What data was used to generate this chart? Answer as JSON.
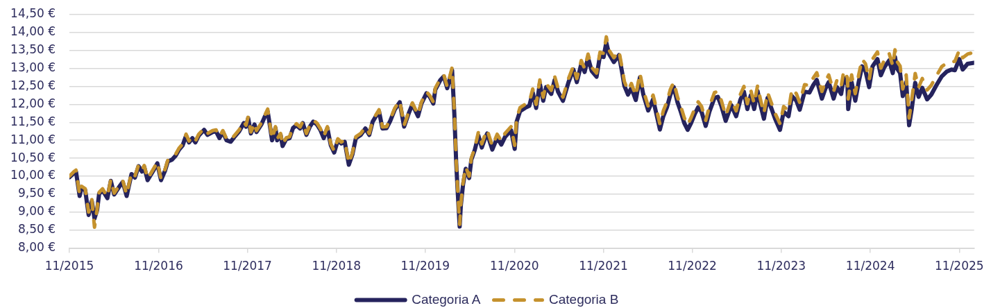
{
  "chart_data": {
    "type": "line",
    "x": [
      "2015-11-01",
      "2015-11-20",
      "2015-11-28",
      "2015-12-13",
      "2015-12-21",
      "2016-01-05",
      "2016-01-19",
      "2016-02-01",
      "2016-02-12",
      "2016-02-23",
      "2016-03-02",
      "2016-03-16",
      "2016-04-05",
      "2016-04-19",
      "2016-05-03",
      "2016-05-23",
      "2016-06-07",
      "2016-06-23",
      "2016-07-13",
      "2016-07-27",
      "2016-08-11",
      "2016-08-25",
      "2016-09-03",
      "2016-09-17",
      "2016-10-02",
      "2016-10-16",
      "2016-10-27",
      "2016-11-11",
      "2016-11-28",
      "2016-12-09",
      "2016-12-26",
      "2017-01-10",
      "2017-01-24",
      "2017-02-08",
      "2017-02-22",
      "2017-03-06",
      "2017-03-20",
      "2017-04-01",
      "2017-04-15",
      "2017-05-07",
      "2017-05-21",
      "2017-06-11",
      "2017-06-25",
      "2017-07-09",
      "2017-07-23",
      "2017-08-07",
      "2017-08-24",
      "2017-09-08",
      "2017-09-28",
      "2017-10-17",
      "2017-10-26",
      "2017-11-04",
      "2017-11-15",
      "2017-11-30",
      "2017-12-08",
      "2017-12-28",
      "2018-01-12",
      "2018-01-23",
      "2018-01-29",
      "2018-02-10",
      "2018-02-24",
      "2018-03-03",
      "2018-03-17",
      "2018-03-25",
      "2018-04-09",
      "2018-04-23",
      "2018-05-07",
      "2018-05-21",
      "2018-06-05",
      "2018-06-16",
      "2018-07-01",
      "2018-07-15",
      "2018-07-29",
      "2018-08-13",
      "2018-08-27",
      "2018-09-10",
      "2018-09-25",
      "2018-10-09",
      "2018-10-23",
      "2018-11-07",
      "2018-11-21",
      "2018-12-05",
      "2018-12-22",
      "2019-01-06",
      "2019-01-20",
      "2019-02-09",
      "2019-02-28",
      "2019-03-16",
      "2019-03-30",
      "2019-04-25",
      "2019-05-09",
      "2019-05-26",
      "2019-06-10",
      "2019-06-29",
      "2019-07-19",
      "2019-08-06",
      "2019-08-26",
      "2019-09-09",
      "2019-10-02",
      "2019-10-16",
      "2019-11-06",
      "2019-11-20",
      "2019-12-04",
      "2019-12-12",
      "2020-01-02",
      "2020-01-16",
      "2020-01-30",
      "2020-02-19",
      "2020-02-28",
      "2020-03-07",
      "2020-03-12",
      "2020-03-21",
      "2020-03-26",
      "2020-04-04",
      "2020-04-15",
      "2020-04-29",
      "2020-05-08",
      "2020-05-22",
      "2020-06-06",
      "2020-06-20",
      "2020-07-04",
      "2020-07-12",
      "2020-08-02",
      "2020-08-22",
      "2020-09-08",
      "2020-09-23",
      "2020-10-18",
      "2020-11-02",
      "2020-11-10",
      "2020-11-24",
      "2020-12-14",
      "2021-01-01",
      "2021-01-15",
      "2021-01-29",
      "2021-02-13",
      "2021-02-27",
      "2021-03-11",
      "2021-04-01",
      "2021-04-15",
      "2021-04-29",
      "2021-05-19",
      "2021-06-11",
      "2021-07-01",
      "2021-07-15",
      "2021-08-02",
      "2021-08-16",
      "2021-08-30",
      "2021-09-14",
      "2021-10-04",
      "2021-10-18",
      "2021-11-02",
      "2021-11-13",
      "2021-11-24",
      "2021-12-14",
      "2022-01-04",
      "2022-01-18",
      "2022-01-26",
      "2022-02-10",
      "2022-02-24",
      "2022-03-14",
      "2022-03-31",
      "2022-04-14",
      "2022-05-04",
      "2022-05-24",
      "2022-06-02",
      "2022-06-21",
      "2022-07-05",
      "2022-07-20",
      "2022-08-03",
      "2022-08-17",
      "2022-09-01",
      "2022-09-15",
      "2022-09-29",
      "2022-10-13",
      "2022-10-27",
      "2022-11-11",
      "2022-11-25",
      "2022-12-09",
      "2022-12-26",
      "2023-01-10",
      "2023-01-31",
      "2023-02-14",
      "2023-02-28",
      "2023-03-18",
      "2023-04-10",
      "2023-04-30",
      "2023-05-17",
      "2023-06-01",
      "2023-06-15",
      "2023-06-29",
      "2023-07-13",
      "2023-07-27",
      "2023-08-08",
      "2023-08-22",
      "2023-09-06",
      "2023-09-20",
      "2023-10-07",
      "2023-10-27",
      "2023-11-11",
      "2023-12-01",
      "2023-12-15",
      "2024-01-02",
      "2024-01-16",
      "2024-02-05",
      "2024-02-25",
      "2024-03-12",
      "2024-03-26",
      "2024-04-16",
      "2024-04-30",
      "2024-05-14",
      "2024-06-03",
      "2024-06-17",
      "2024-07-04",
      "2024-07-15",
      "2024-07-30",
      "2024-08-02",
      "2024-08-16",
      "2024-08-31",
      "2024-09-14",
      "2024-09-28",
      "2024-10-12",
      "2024-10-27",
      "2024-11-10",
      "2024-11-30",
      "2024-12-14",
      "2024-12-28",
      "2025-01-17",
      "2025-02-01",
      "2025-02-10",
      "2025-02-18",
      "2025-03-03",
      "2025-03-14",
      "2025-03-28",
      "2025-04-09",
      "2025-04-20",
      "2025-05-04",
      "2025-05-18",
      "2025-06-02",
      "2025-06-22",
      "2025-07-09",
      "2025-07-29",
      "2025-08-21",
      "2025-09-10",
      "2025-09-30",
      "2025-10-14",
      "2025-11-01",
      "2025-11-15",
      "2025-12-05",
      "2026-01-01"
    ],
    "series": [
      {
        "name": "Categoria A",
        "color": "#25235d",
        "line_style": "solid",
        "values": [
          9.97,
          10.09,
          10.13,
          9.45,
          9.68,
          9.61,
          8.92,
          9.31,
          8.82,
          9.06,
          9.51,
          9.61,
          9.39,
          9.87,
          9.49,
          9.7,
          9.84,
          9.45,
          10.06,
          9.96,
          10.28,
          10.13,
          10.26,
          9.89,
          10.06,
          10.22,
          10.36,
          9.89,
          10.16,
          10.41,
          10.46,
          10.57,
          10.74,
          10.86,
          11.13,
          10.94,
          11.06,
          10.94,
          11.13,
          11.29,
          11.15,
          11.23,
          11.25,
          11.06,
          11.23,
          11.0,
          10.96,
          11.09,
          11.25,
          11.48,
          11.38,
          11.62,
          11.19,
          11.44,
          11.23,
          11.44,
          11.67,
          11.8,
          11.54,
          11.0,
          11.34,
          11.0,
          11.15,
          10.84,
          11.03,
          11.06,
          11.34,
          11.42,
          11.33,
          11.48,
          11.15,
          11.38,
          11.52,
          11.44,
          11.29,
          11.06,
          11.34,
          10.86,
          10.66,
          11.0,
          10.91,
          10.96,
          10.32,
          10.61,
          11.06,
          11.15,
          11.33,
          11.15,
          11.52,
          11.81,
          11.33,
          11.34,
          11.54,
          11.86,
          12.06,
          11.38,
          11.77,
          12.0,
          11.67,
          12.02,
          12.31,
          12.2,
          12.02,
          12.41,
          12.68,
          12.78,
          12.45,
          12.95,
          11.76,
          10.35,
          9.69,
          8.6,
          9.19,
          9.77,
          10.21,
          9.95,
          10.46,
          10.73,
          11.13,
          10.8,
          11.07,
          11.19,
          10.74,
          11.07,
          10.88,
          11.09,
          11.28,
          10.76,
          11.52,
          11.81,
          11.9,
          11.96,
          12.33,
          11.9,
          12.58,
          12.1,
          12.48,
          12.29,
          12.68,
          12.35,
          12.1,
          12.62,
          12.97,
          12.62,
          13.12,
          12.9,
          13.3,
          12.93,
          12.77,
          13.35,
          13.32,
          13.72,
          13.41,
          13.18,
          13.37,
          12.85,
          12.52,
          12.27,
          12.46,
          12.12,
          12.75,
          12.27,
          11.83,
          12.14,
          11.87,
          11.3,
          11.67,
          11.92,
          12.27,
          12.48,
          12.06,
          11.79,
          11.48,
          11.29,
          11.48,
          11.73,
          11.92,
          11.79,
          11.4,
          11.79,
          12.18,
          12.21,
          11.96,
          11.54,
          11.98,
          11.67,
          12.12,
          12.35,
          11.87,
          12.25,
          11.87,
          12.37,
          11.98,
          11.6,
          12.18,
          11.92,
          11.6,
          11.29,
          11.79,
          11.67,
          12.23,
          12.1,
          11.85,
          12.35,
          12.33,
          12.54,
          12.68,
          12.16,
          12.43,
          12.62,
          12.16,
          12.48,
          12.29,
          12.74,
          12.54,
          11.87,
          12.62,
          12.1,
          12.62,
          13.06,
          12.93,
          12.48,
          13.06,
          13.26,
          12.81,
          13.03,
          13.22,
          12.87,
          13.32,
          13.0,
          12.87,
          12.23,
          12.62,
          11.42,
          11.88,
          12.6,
          12.21,
          12.46,
          12.14,
          12.27,
          12.52,
          12.78,
          12.91,
          12.97,
          12.95,
          13.26,
          12.97,
          13.13,
          13.16
        ]
      },
      {
        "name": "Categoria B",
        "color": "#c5922e",
        "line_style": "dashed",
        "values": [
          10.0,
          10.13,
          10.17,
          9.49,
          9.72,
          9.65,
          9.0,
          9.35,
          8.58,
          9.1,
          9.55,
          9.65,
          9.43,
          9.91,
          9.53,
          9.74,
          9.88,
          9.49,
          10.1,
          10.0,
          10.32,
          10.17,
          10.3,
          9.93,
          10.1,
          10.26,
          10.4,
          9.93,
          10.2,
          10.45,
          10.5,
          10.61,
          10.78,
          10.9,
          11.17,
          10.98,
          11.1,
          10.98,
          11.17,
          11.33,
          11.19,
          11.27,
          11.29,
          11.1,
          11.27,
          11.04,
          11.0,
          11.13,
          11.29,
          11.52,
          11.42,
          11.66,
          11.23,
          11.48,
          11.27,
          11.48,
          11.71,
          11.87,
          11.58,
          11.04,
          11.38,
          11.04,
          11.19,
          10.88,
          11.07,
          11.1,
          11.38,
          11.46,
          11.37,
          11.52,
          11.19,
          11.42,
          11.56,
          11.48,
          11.33,
          11.1,
          11.38,
          10.9,
          10.7,
          11.04,
          10.95,
          11.0,
          10.36,
          10.65,
          11.1,
          11.19,
          11.37,
          11.19,
          11.56,
          11.85,
          11.37,
          11.38,
          11.58,
          11.9,
          12.1,
          11.42,
          11.81,
          12.04,
          11.71,
          12.06,
          12.35,
          12.24,
          12.06,
          12.45,
          12.72,
          12.82,
          12.49,
          13.03,
          11.81,
          10.4,
          9.74,
          8.66,
          9.24,
          9.82,
          10.26,
          10.0,
          10.51,
          10.78,
          11.23,
          10.9,
          11.17,
          11.29,
          10.84,
          11.17,
          10.98,
          11.19,
          11.38,
          10.86,
          11.62,
          11.91,
          12.0,
          12.06,
          12.43,
          12.0,
          12.68,
          12.2,
          12.58,
          12.39,
          12.78,
          12.45,
          12.2,
          12.72,
          13.07,
          12.72,
          13.22,
          13.0,
          13.4,
          13.03,
          12.87,
          13.45,
          13.42,
          13.88,
          13.51,
          13.3,
          13.49,
          12.97,
          12.64,
          12.39,
          12.58,
          12.24,
          12.87,
          12.39,
          11.95,
          12.26,
          12.02,
          11.45,
          11.82,
          12.07,
          12.42,
          12.62,
          12.21,
          11.94,
          11.63,
          11.43,
          11.63,
          11.88,
          12.07,
          11.94,
          11.55,
          11.94,
          12.33,
          12.36,
          12.11,
          11.69,
          12.13,
          11.82,
          12.27,
          12.5,
          12.02,
          12.4,
          12.02,
          12.52,
          12.13,
          11.75,
          12.33,
          12.07,
          11.75,
          11.46,
          11.94,
          11.82,
          12.43,
          12.3,
          12.05,
          12.55,
          12.53,
          12.74,
          12.88,
          12.36,
          12.63,
          12.82,
          12.36,
          12.68,
          12.49,
          12.94,
          12.74,
          12.15,
          12.82,
          12.3,
          12.82,
          13.26,
          13.13,
          12.68,
          13.26,
          13.46,
          13.01,
          13.23,
          13.42,
          13.07,
          13.52,
          13.2,
          13.07,
          12.43,
          12.82,
          11.62,
          12.14,
          12.86,
          12.47,
          12.72,
          12.4,
          12.53,
          12.78,
          13.05,
          13.15,
          13.18,
          13.2,
          13.51,
          13.3,
          13.4,
          13.45
        ]
      }
    ],
    "xlim": [
      "2015-11",
      "2026-01"
    ],
    "xticks": [
      {
        "value": "2015-11",
        "label": "11/2015"
      },
      {
        "value": "2016-11",
        "label": "11/2016"
      },
      {
        "value": "2017-11",
        "label": "11/2017"
      },
      {
        "value": "2018-11",
        "label": "11/2018"
      },
      {
        "value": "2019-11",
        "label": "11/2019"
      },
      {
        "value": "2020-11",
        "label": "11/2020"
      },
      {
        "value": "2021-11",
        "label": "11/2021"
      },
      {
        "value": "2022-11",
        "label": "11/2022"
      },
      {
        "value": "2023-11",
        "label": "11/2023"
      },
      {
        "value": "2024-11",
        "label": "11/2024"
      },
      {
        "value": "2025-11",
        "label": "11/2025"
      }
    ],
    "ylim": [
      8,
      14.5
    ],
    "yticks": [
      {
        "value": 8,
        "label": "8,00 €"
      },
      {
        "value": 8.5,
        "label": "8,50 €"
      },
      {
        "value": 9,
        "label": "9,00 €"
      },
      {
        "value": 9.5,
        "label": "9,50 €"
      },
      {
        "value": 10,
        "label": "10,00 €"
      },
      {
        "value": 10.5,
        "label": "10,50 €"
      },
      {
        "value": 11,
        "label": "11,00 €"
      },
      {
        "value": 11.5,
        "label": "11,50 €"
      },
      {
        "value": 12,
        "label": "12,00 €"
      },
      {
        "value": 12.5,
        "label": "12,50 €"
      },
      {
        "value": 13,
        "label": "13,00 €"
      },
      {
        "value": 13.5,
        "label": "13,50 €"
      },
      {
        "value": 14,
        "label": "14,00 €"
      },
      {
        "value": 14.5,
        "label": "14,50 €"
      }
    ],
    "grid": "y",
    "legend": "bottom",
    "marker": "none"
  }
}
